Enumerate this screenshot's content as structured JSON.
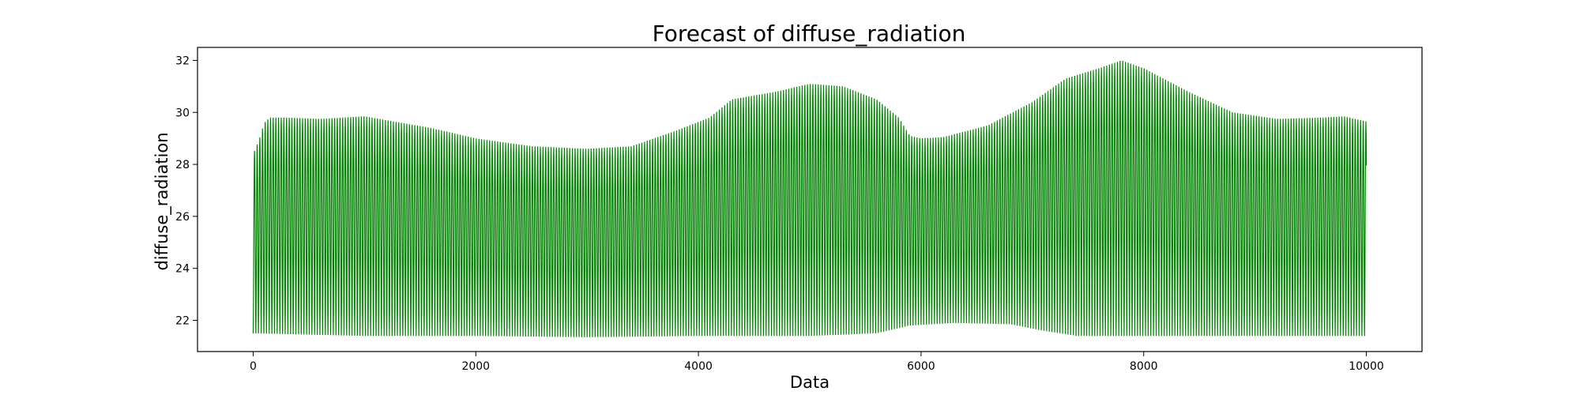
{
  "chart_data": {
    "type": "line",
    "title": "Forecast of diffuse_radiation",
    "xlabel": "Data",
    "ylabel": "diffuse_radiation",
    "xlim": [
      -500,
      10500
    ],
    "ylim": [
      20.8,
      32.5
    ],
    "xticks": [
      0,
      2000,
      4000,
      6000,
      8000,
      10000
    ],
    "yticks": [
      22,
      24,
      26,
      28,
      30,
      32
    ],
    "xtick_labels": [
      "0",
      "2000",
      "4000",
      "6000",
      "8000",
      "10000"
    ],
    "ytick_labels": [
      "22",
      "24",
      "26",
      "28",
      "30",
      "32"
    ],
    "grid": false,
    "legend": "none",
    "color": "#008000",
    "series": [
      {
        "x_range": [
          0,
          10000
        ],
        "cycle_length": 24,
        "upper_envelope": {
          "x": [
            0,
            50,
            100,
            150,
            300,
            600,
            800,
            1000,
            1200,
            1600,
            2000,
            2500,
            3000,
            3400,
            3800,
            4100,
            4300,
            4700,
            5000,
            5300,
            5600,
            5800,
            5900,
            6000,
            6200,
            6600,
            7000,
            7300,
            7600,
            7800,
            8000,
            8400,
            8800,
            9200,
            9600,
            9800,
            10000
          ],
          "y": [
            28.4,
            28.9,
            29.6,
            29.8,
            29.8,
            29.75,
            29.8,
            29.85,
            29.7,
            29.4,
            29.0,
            28.7,
            28.6,
            28.7,
            29.3,
            29.8,
            30.5,
            30.8,
            31.1,
            31.0,
            30.5,
            29.8,
            29.1,
            29.0,
            29.05,
            29.5,
            30.4,
            31.3,
            31.7,
            32.0,
            31.7,
            30.8,
            30.0,
            29.75,
            29.8,
            29.85,
            29.65
          ]
        },
        "lower_envelope": {
          "x": [
            0,
            1000,
            2000,
            3000,
            4000,
            5000,
            5600,
            5900,
            6300,
            6800,
            7100,
            7400,
            8000,
            9000,
            10000
          ],
          "y": [
            21.5,
            21.4,
            21.4,
            21.35,
            21.4,
            21.4,
            21.5,
            21.8,
            21.9,
            21.85,
            21.6,
            21.4,
            21.4,
            21.4,
            21.4
          ]
        }
      }
    ]
  }
}
